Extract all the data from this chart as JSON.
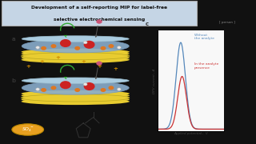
{
  "title_line1": "Development of a self-reporting MIP for label-free",
  "title_line2": "selective electrochemical sensing",
  "title_bg": "#c5d5e5",
  "slide_bg": "#e8e8e8",
  "label_a": "a",
  "label_b": "b",
  "label_c": "c",
  "curve1_color": "#5588bb",
  "curve2_color": "#cc3333",
  "legend1": "Without\nthe analyte",
  "legend2": "In the analyte\npresence",
  "xlabel": "Applied potential ,  V",
  "ylabel": "DPV current , A",
  "dish_body_color": "#8aadcc",
  "dish_rim_color": "#aacce0",
  "dish_yellow": "#e8cc30",
  "red_ball": "#cc2222",
  "red_ball2": "#dd3344",
  "orange_ball": "#dd7722",
  "white_ball": "#e8e8e8",
  "pink_ball": "#cc5577",
  "green_arrow": "#33aa33",
  "plus_color": "#cc8800",
  "so4_color": "#e8a020",
  "webcam_bg": "#303030"
}
